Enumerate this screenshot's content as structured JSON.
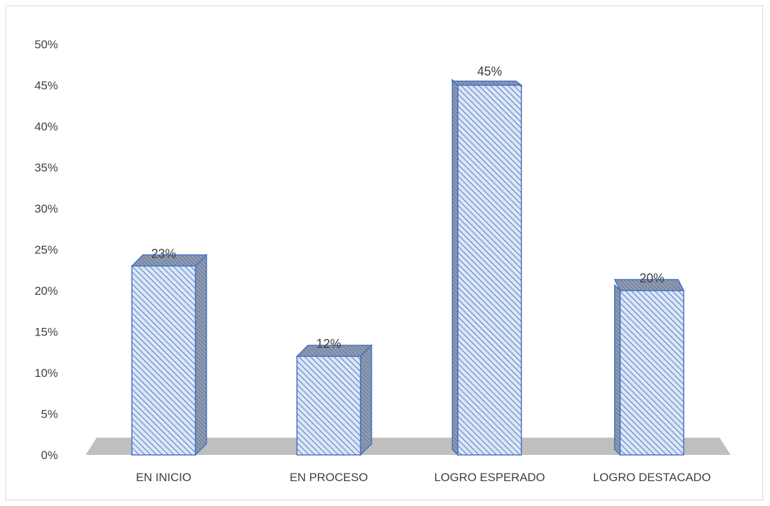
{
  "chart_data": {
    "type": "bar",
    "title": "",
    "xlabel": "",
    "ylabel": "",
    "categories": [
      "EN INICIO",
      "EN PROCESO",
      "LOGRO ESPERADO",
      "LOGRO DESTACADO"
    ],
    "values": [
      23,
      12,
      45,
      20
    ],
    "value_labels": [
      "23%",
      "12%",
      "45%",
      "20%"
    ],
    "ylim": [
      0,
      50
    ],
    "yticks": [
      0,
      5,
      10,
      15,
      20,
      25,
      30,
      35,
      40,
      45,
      50
    ],
    "ytick_labels": [
      "0%",
      "5%",
      "10%",
      "15%",
      "20%",
      "25%",
      "30%",
      "35%",
      "40%",
      "45%",
      "50%"
    ],
    "grid": false,
    "legend": "none",
    "style": "3d-column",
    "bar_fill": "#dbe6f6",
    "bar_hatch": "#4f76c3",
    "bar_edge": "#4472c4",
    "bar_top": "#7f8ea8",
    "floor_color": "#bfbfbf",
    "text_color": "#404040"
  }
}
